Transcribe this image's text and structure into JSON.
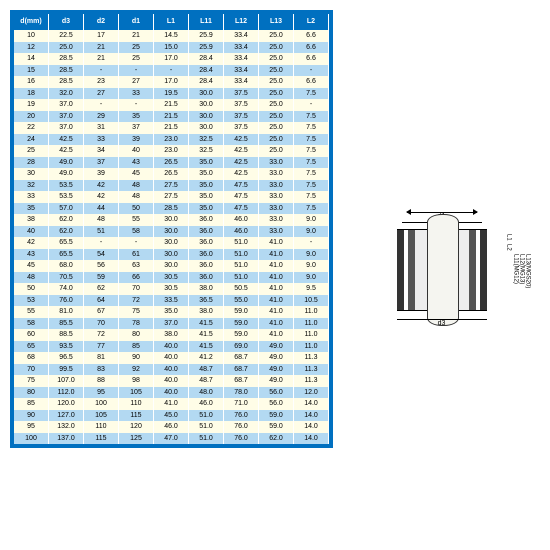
{
  "table": {
    "header_bg": "#0070c0",
    "header_color": "#ffffff",
    "stripe_a": "#fffde7",
    "stripe_b": "#b3d9f2",
    "columns": [
      "d(mm)",
      "d3",
      "d2",
      "d1",
      "L1",
      "L11",
      "L12",
      "L13",
      "L2"
    ],
    "rows": [
      [
        "10",
        "22.5",
        "17",
        "21",
        "14.5",
        "25.9",
        "33.4",
        "25.0",
        "6.6"
      ],
      [
        "12",
        "25.0",
        "21",
        "25",
        "15.0",
        "25.9",
        "33.4",
        "25.0",
        "6.6"
      ],
      [
        "14",
        "28.5",
        "21",
        "25",
        "17.0",
        "28.4",
        "33.4",
        "25.0",
        "6.6"
      ],
      [
        "15",
        "28.5",
        "-",
        "-",
        "-",
        "28.4",
        "33.4",
        "25.0",
        "-"
      ],
      [
        "16",
        "28.5",
        "23",
        "27",
        "17.0",
        "28.4",
        "33.4",
        "25.0",
        "6.6"
      ],
      [
        "18",
        "32.0",
        "27",
        "33",
        "19.5",
        "30.0",
        "37.5",
        "25.0",
        "7.5"
      ],
      [
        "19",
        "37.0",
        "-",
        "-",
        "21.5",
        "30.0",
        "37.5",
        "25.0",
        "-"
      ],
      [
        "20",
        "37.0",
        "29",
        "35",
        "21.5",
        "30.0",
        "37.5",
        "25.0",
        "7.5"
      ],
      [
        "22",
        "37.0",
        "31",
        "37",
        "21.5",
        "30.0",
        "37.5",
        "25.0",
        "7.5"
      ],
      [
        "24",
        "42.5",
        "33",
        "39",
        "23.0",
        "32.5",
        "42.5",
        "25.0",
        "7.5"
      ],
      [
        "25",
        "42.5",
        "34",
        "40",
        "23.0",
        "32.5",
        "42.5",
        "25.0",
        "7.5"
      ],
      [
        "28",
        "49.0",
        "37",
        "43",
        "26.5",
        "35.0",
        "42.5",
        "33.0",
        "7.5"
      ],
      [
        "30",
        "49.0",
        "39",
        "45",
        "26.5",
        "35.0",
        "42.5",
        "33.0",
        "7.5"
      ],
      [
        "32",
        "53.5",
        "42",
        "48",
        "27.5",
        "35.0",
        "47.5",
        "33.0",
        "7.5"
      ],
      [
        "33",
        "53.5",
        "42",
        "48",
        "27.5",
        "35.0",
        "47.5",
        "33.0",
        "7.5"
      ],
      [
        "35",
        "57.0",
        "44",
        "50",
        "28.5",
        "35.0",
        "47.5",
        "33.0",
        "7.5"
      ],
      [
        "38",
        "62.0",
        "48",
        "55",
        "30.0",
        "36.0",
        "46.0",
        "33.0",
        "9.0"
      ],
      [
        "40",
        "62.0",
        "51",
        "58",
        "30.0",
        "36.0",
        "46.0",
        "33.0",
        "9.0"
      ],
      [
        "42",
        "65.5",
        "-",
        "-",
        "30.0",
        "36.0",
        "51.0",
        "41.0",
        "-"
      ],
      [
        "43",
        "65.5",
        "54",
        "61",
        "30.0",
        "36.0",
        "51.0",
        "41.0",
        "9.0"
      ],
      [
        "45",
        "68.0",
        "56",
        "63",
        "30.0",
        "36.0",
        "51.0",
        "41.0",
        "9.0"
      ],
      [
        "48",
        "70.5",
        "59",
        "66",
        "30.5",
        "36.0",
        "51.0",
        "41.0",
        "9.0"
      ],
      [
        "50",
        "74.0",
        "62",
        "70",
        "30.5",
        "38.0",
        "50.5",
        "41.0",
        "9.5"
      ],
      [
        "53",
        "76.0",
        "64",
        "72",
        "33.5",
        "36.5",
        "55.0",
        "41.0",
        "10.5"
      ],
      [
        "55",
        "81.0",
        "67",
        "75",
        "35.0",
        "38.0",
        "59.0",
        "41.0",
        "11.0"
      ],
      [
        "58",
        "85.5",
        "70",
        "78",
        "37.0",
        "41.5",
        "59.0",
        "41.0",
        "11.0"
      ],
      [
        "60",
        "88.5",
        "72",
        "80",
        "38.0",
        "41.5",
        "59.0",
        "41.0",
        "11.0"
      ],
      [
        "65",
        "93.5",
        "77",
        "85",
        "40.0",
        "41.5",
        "69.0",
        "49.0",
        "11.0"
      ],
      [
        "68",
        "96.5",
        "81",
        "90",
        "40.0",
        "41.2",
        "68.7",
        "49.0",
        "11.3"
      ],
      [
        "70",
        "99.5",
        "83",
        "92",
        "40.0",
        "48.7",
        "68.7",
        "49.0",
        "11.3"
      ],
      [
        "75",
        "107.0",
        "88",
        "98",
        "40.0",
        "48.7",
        "68.7",
        "49.0",
        "11.3"
      ],
      [
        "80",
        "112.0",
        "95",
        "105",
        "40.0",
        "48.0",
        "78.0",
        "56.0",
        "12.0"
      ],
      [
        "85",
        "120.0",
        "100",
        "110",
        "41.0",
        "46.0",
        "71.0",
        "56.0",
        "14.0"
      ],
      [
        "90",
        "127.0",
        "105",
        "115",
        "45.0",
        "51.0",
        "76.0",
        "59.0",
        "14.0"
      ],
      [
        "95",
        "132.0",
        "110",
        "120",
        "46.0",
        "51.0",
        "76.0",
        "59.0",
        "14.0"
      ],
      [
        "100",
        "137.0",
        "115",
        "125",
        "47.0",
        "51.0",
        "76.0",
        "62.0",
        "14.0"
      ]
    ]
  },
  "diagram": {
    "labels": {
      "d1": "d1",
      "d2": "d2",
      "d3": "d3",
      "L1": "L1",
      "L2": "L2",
      "L11": "L11(MG12)",
      "L12": "L12(MG13)",
      "L13": "L13(MGS20)"
    }
  }
}
